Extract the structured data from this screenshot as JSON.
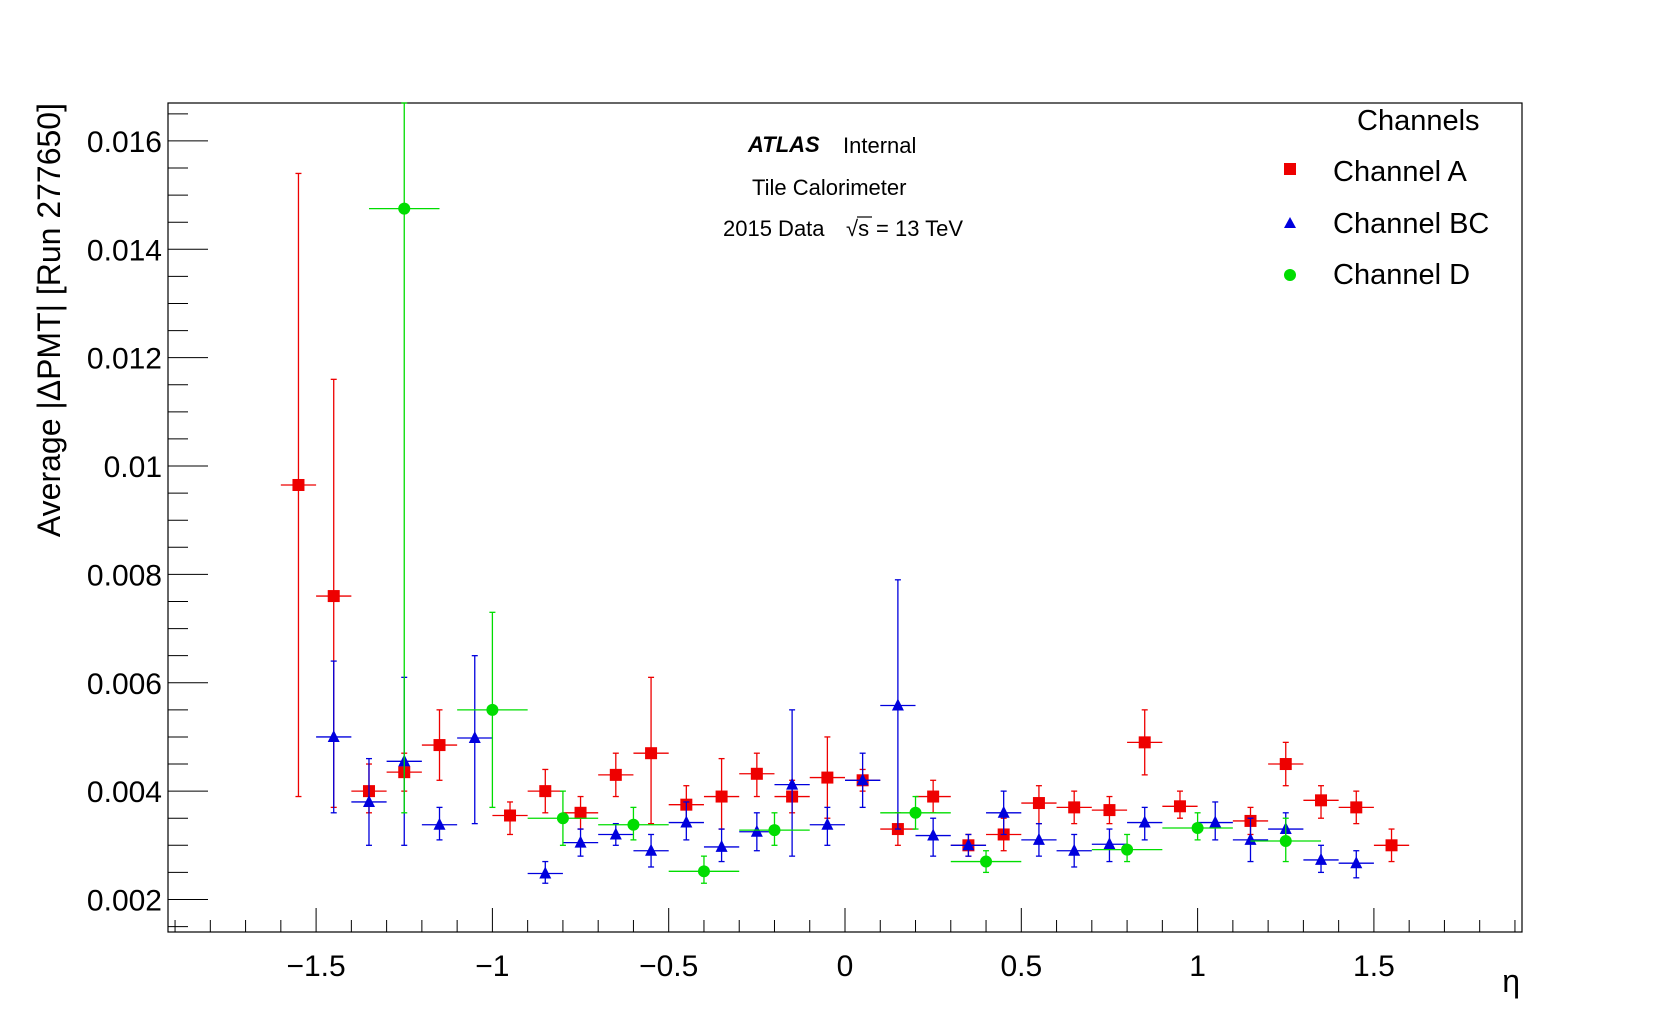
{
  "chart_data": {
    "type": "scatter",
    "xlabel": "η",
    "ylabel": "Average |ΔPMT| [Run 277650]",
    "xlim": [
      -1.92,
      1.92
    ],
    "ylim": [
      0.0014,
      0.0167
    ],
    "x_ticks": [
      -1.5,
      -1,
      -0.5,
      0,
      0.5,
      1,
      1.5
    ],
    "x_tick_labels": [
      "−1.5",
      "−1",
      "−0.5",
      "0",
      "0.5",
      "1",
      "1.5"
    ],
    "y_ticks": [
      0.002,
      0.004,
      0.006,
      0.008,
      0.01,
      0.012,
      0.014,
      0.016
    ],
    "y_tick_labels": [
      "0.002",
      "0.004",
      "0.006",
      "0.008",
      "0.01",
      "0.012",
      "0.014",
      "0.016"
    ],
    "grid": false,
    "legend": {
      "title": "Channels",
      "position": "top-right"
    },
    "annotations": {
      "atlas": "ATLAS",
      "atlas_status": "Internal",
      "line2": "Tile Calorimeter",
      "line3_prefix": "2015 Data",
      "line3_sqrt": "√s",
      "line3_suffix": "= 13 TeV"
    },
    "series": [
      {
        "name": "Channel A",
        "marker": "square",
        "color": "#ee0000",
        "points": [
          {
            "x": -1.55,
            "y": 0.00965,
            "xerr": 0.05,
            "ylo": 0.0039,
            "yhi": 0.0154
          },
          {
            "x": -1.45,
            "y": 0.0076,
            "xerr": 0.05,
            "ylo": 0.0037,
            "yhi": 0.0116
          },
          {
            "x": -1.35,
            "y": 0.004,
            "xerr": 0.05,
            "ylo": 0.0036,
            "yhi": 0.0045
          },
          {
            "x": -1.25,
            "y": 0.00435,
            "xerr": 0.05,
            "ylo": 0.004,
            "yhi": 0.0047
          },
          {
            "x": -1.15,
            "y": 0.00485,
            "xerr": 0.05,
            "ylo": 0.0042,
            "yhi": 0.0055
          },
          {
            "x": -0.95,
            "y": 0.00355,
            "xerr": 0.05,
            "ylo": 0.0032,
            "yhi": 0.0038
          },
          {
            "x": -0.85,
            "y": 0.004,
            "xerr": 0.05,
            "ylo": 0.0036,
            "yhi": 0.0044
          },
          {
            "x": -0.75,
            "y": 0.0036,
            "xerr": 0.05,
            "ylo": 0.0033,
            "yhi": 0.0039
          },
          {
            "x": -0.65,
            "y": 0.0043,
            "xerr": 0.05,
            "ylo": 0.0039,
            "yhi": 0.0047
          },
          {
            "x": -0.55,
            "y": 0.0047,
            "xerr": 0.05,
            "ylo": 0.0034,
            "yhi": 0.0061
          },
          {
            "x": -0.45,
            "y": 0.00375,
            "xerr": 0.05,
            "ylo": 0.0034,
            "yhi": 0.0041
          },
          {
            "x": -0.35,
            "y": 0.0039,
            "xerr": 0.05,
            "ylo": 0.0033,
            "yhi": 0.0046
          },
          {
            "x": -0.25,
            "y": 0.00432,
            "xerr": 0.05,
            "ylo": 0.0039,
            "yhi": 0.0047
          },
          {
            "x": -0.15,
            "y": 0.0039,
            "xerr": 0.05,
            "ylo": 0.0036,
            "yhi": 0.0042
          },
          {
            "x": -0.05,
            "y": 0.00425,
            "xerr": 0.05,
            "ylo": 0.0035,
            "yhi": 0.005
          },
          {
            "x": 0.05,
            "y": 0.0042,
            "xerr": 0.05,
            "ylo": 0.004,
            "yhi": 0.0044
          },
          {
            "x": 0.15,
            "y": 0.0033,
            "xerr": 0.05,
            "ylo": 0.003,
            "yhi": 0.0036
          },
          {
            "x": 0.25,
            "y": 0.0039,
            "xerr": 0.05,
            "ylo": 0.0036,
            "yhi": 0.0042
          },
          {
            "x": 0.35,
            "y": 0.003,
            "xerr": 0.05,
            "ylo": 0.0028,
            "yhi": 0.0032
          },
          {
            "x": 0.45,
            "y": 0.0032,
            "xerr": 0.05,
            "ylo": 0.0029,
            "yhi": 0.0035
          },
          {
            "x": 0.55,
            "y": 0.00378,
            "xerr": 0.05,
            "ylo": 0.0034,
            "yhi": 0.0041
          },
          {
            "x": 0.65,
            "y": 0.0037,
            "xerr": 0.05,
            "ylo": 0.0034,
            "yhi": 0.004
          },
          {
            "x": 0.75,
            "y": 0.00365,
            "xerr": 0.05,
            "ylo": 0.0034,
            "yhi": 0.0039
          },
          {
            "x": 0.85,
            "y": 0.0049,
            "xerr": 0.05,
            "ylo": 0.0043,
            "yhi": 0.0055
          },
          {
            "x": 0.95,
            "y": 0.00372,
            "xerr": 0.05,
            "ylo": 0.0035,
            "yhi": 0.004
          },
          {
            "x": 1.15,
            "y": 0.00345,
            "xerr": 0.05,
            "ylo": 0.0032,
            "yhi": 0.0037
          },
          {
            "x": 1.25,
            "y": 0.0045,
            "xerr": 0.05,
            "ylo": 0.0041,
            "yhi": 0.0049
          },
          {
            "x": 1.35,
            "y": 0.00383,
            "xerr": 0.05,
            "ylo": 0.0035,
            "yhi": 0.0041
          },
          {
            "x": 1.45,
            "y": 0.0037,
            "xerr": 0.05,
            "ylo": 0.0034,
            "yhi": 0.004
          },
          {
            "x": 1.55,
            "y": 0.003,
            "xerr": 0.05,
            "ylo": 0.0027,
            "yhi": 0.0033
          }
        ]
      },
      {
        "name": "Channel BC",
        "marker": "triangle",
        "color": "#0000dd",
        "points": [
          {
            "x": -1.45,
            "y": 0.005,
            "xerr": 0.05,
            "ylo": 0.0036,
            "yhi": 0.0064
          },
          {
            "x": -1.35,
            "y": 0.0038,
            "xerr": 0.05,
            "ylo": 0.003,
            "yhi": 0.0046
          },
          {
            "x": -1.25,
            "y": 0.00455,
            "xerr": 0.05,
            "ylo": 0.003,
            "yhi": 0.0061
          },
          {
            "x": -1.15,
            "y": 0.00338,
            "xerr": 0.05,
            "ylo": 0.0031,
            "yhi": 0.0037
          },
          {
            "x": -1.05,
            "y": 0.00498,
            "xerr": 0.05,
            "ylo": 0.0034,
            "yhi": 0.0065
          },
          {
            "x": -0.85,
            "y": 0.00248,
            "xerr": 0.05,
            "ylo": 0.0023,
            "yhi": 0.0027
          },
          {
            "x": -0.75,
            "y": 0.00305,
            "xerr": 0.05,
            "ylo": 0.0028,
            "yhi": 0.0033
          },
          {
            "x": -0.65,
            "y": 0.0032,
            "xerr": 0.05,
            "ylo": 0.003,
            "yhi": 0.0034
          },
          {
            "x": -0.55,
            "y": 0.0029,
            "xerr": 0.05,
            "ylo": 0.0026,
            "yhi": 0.0032
          },
          {
            "x": -0.45,
            "y": 0.00342,
            "xerr": 0.05,
            "ylo": 0.0031,
            "yhi": 0.0038
          },
          {
            "x": -0.35,
            "y": 0.00297,
            "xerr": 0.05,
            "ylo": 0.0027,
            "yhi": 0.0033
          },
          {
            "x": -0.25,
            "y": 0.00325,
            "xerr": 0.05,
            "ylo": 0.0029,
            "yhi": 0.0036
          },
          {
            "x": -0.15,
            "y": 0.00412,
            "xerr": 0.05,
            "ylo": 0.0028,
            "yhi": 0.0055
          },
          {
            "x": -0.05,
            "y": 0.00338,
            "xerr": 0.05,
            "ylo": 0.003,
            "yhi": 0.0037
          },
          {
            "x": 0.05,
            "y": 0.0042,
            "xerr": 0.05,
            "ylo": 0.0037,
            "yhi": 0.0047
          },
          {
            "x": 0.15,
            "y": 0.00558,
            "xerr": 0.05,
            "ylo": 0.0033,
            "yhi": 0.0079
          },
          {
            "x": 0.25,
            "y": 0.00318,
            "xerr": 0.05,
            "ylo": 0.0028,
            "yhi": 0.0035
          },
          {
            "x": 0.35,
            "y": 0.003,
            "xerr": 0.05,
            "ylo": 0.0028,
            "yhi": 0.0032
          },
          {
            "x": 0.45,
            "y": 0.0036,
            "xerr": 0.05,
            "ylo": 0.0032,
            "yhi": 0.004
          },
          {
            "x": 0.55,
            "y": 0.0031,
            "xerr": 0.05,
            "ylo": 0.0028,
            "yhi": 0.0034
          },
          {
            "x": 0.65,
            "y": 0.0029,
            "xerr": 0.05,
            "ylo": 0.0026,
            "yhi": 0.0032
          },
          {
            "x": 0.75,
            "y": 0.00302,
            "xerr": 0.05,
            "ylo": 0.0027,
            "yhi": 0.0033
          },
          {
            "x": 0.85,
            "y": 0.00342,
            "xerr": 0.05,
            "ylo": 0.0031,
            "yhi": 0.0037
          },
          {
            "x": 1.05,
            "y": 0.00342,
            "xerr": 0.05,
            "ylo": 0.0031,
            "yhi": 0.0038
          },
          {
            "x": 1.15,
            "y": 0.0031,
            "xerr": 0.05,
            "ylo": 0.0027,
            "yhi": 0.0035
          },
          {
            "x": 1.25,
            "y": 0.0033,
            "xerr": 0.05,
            "ylo": 0.003,
            "yhi": 0.0036
          },
          {
            "x": 1.35,
            "y": 0.00273,
            "xerr": 0.05,
            "ylo": 0.0025,
            "yhi": 0.003
          },
          {
            "x": 1.45,
            "y": 0.00267,
            "xerr": 0.05,
            "ylo": 0.0024,
            "yhi": 0.0029
          }
        ]
      },
      {
        "name": "Channel D",
        "marker": "circle",
        "color": "#00dd00",
        "points": [
          {
            "x": -1.25,
            "y": 0.01475,
            "xerr": 0.1,
            "ylo": 0.0036,
            "yhi": 0.0167
          },
          {
            "x": -1.0,
            "y": 0.0055,
            "xerr": 0.1,
            "ylo": 0.0037,
            "yhi": 0.0073
          },
          {
            "x": -0.8,
            "y": 0.0035,
            "xerr": 0.1,
            "ylo": 0.003,
            "yhi": 0.004
          },
          {
            "x": -0.6,
            "y": 0.00338,
            "xerr": 0.1,
            "ylo": 0.0031,
            "yhi": 0.0037
          },
          {
            "x": -0.4,
            "y": 0.00252,
            "xerr": 0.1,
            "ylo": 0.0023,
            "yhi": 0.0028
          },
          {
            "x": -0.2,
            "y": 0.00328,
            "xerr": 0.1,
            "ylo": 0.003,
            "yhi": 0.0036
          },
          {
            "x": 0.2,
            "y": 0.0036,
            "xerr": 0.1,
            "ylo": 0.0033,
            "yhi": 0.0039
          },
          {
            "x": 0.4,
            "y": 0.0027,
            "xerr": 0.1,
            "ylo": 0.0025,
            "yhi": 0.0029
          },
          {
            "x": 0.8,
            "y": 0.00292,
            "xerr": 0.1,
            "ylo": 0.0027,
            "yhi": 0.0032
          },
          {
            "x": 1.0,
            "y": 0.00332,
            "xerr": 0.1,
            "ylo": 0.0031,
            "yhi": 0.0036
          },
          {
            "x": 1.25,
            "y": 0.00308,
            "xerr": 0.1,
            "ylo": 0.0027,
            "yhi": 0.0035
          }
        ]
      }
    ]
  }
}
